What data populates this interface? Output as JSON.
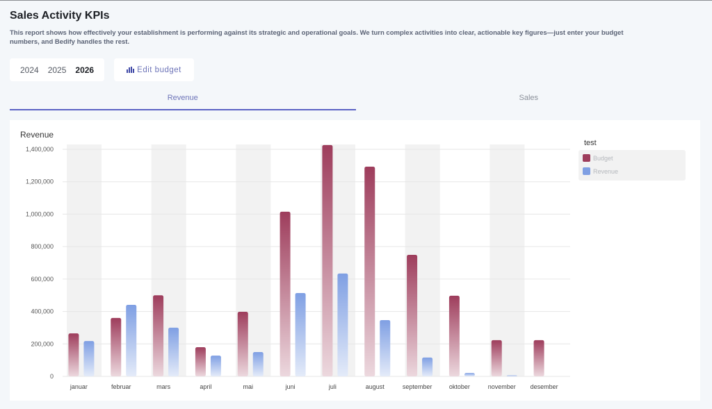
{
  "header": {
    "title": "Sales Activity KPIs",
    "description": "This report shows how effectively your establishment is performing against its strategic and operational goals. We turn complex activities into clear, actionable key figures—just enter your budget numbers, and Bedify handles the rest."
  },
  "years": [
    {
      "label": "2024",
      "active": false
    },
    {
      "label": "2025",
      "active": false
    },
    {
      "label": "2026",
      "active": true
    }
  ],
  "edit_budget": {
    "label": "Edit budget",
    "icon": "bar-chart-icon"
  },
  "tabs": [
    {
      "label": "Revenue",
      "active": true
    },
    {
      "label": "Sales",
      "active": false
    }
  ],
  "colors": {
    "budget": "#9e3d5c",
    "revenue": "#7f9fe3",
    "accent": "#5a62c4"
  },
  "legend": {
    "title": "test",
    "items": [
      "Budget",
      "Revenue"
    ]
  },
  "chart_data": {
    "type": "bar",
    "title": "Revenue",
    "xlabel": "",
    "ylabel": "",
    "ylim": [
      0,
      1400000
    ],
    "yticks": [
      0,
      200000,
      400000,
      600000,
      800000,
      1000000,
      1200000,
      1400000
    ],
    "ytick_labels": [
      "0",
      "200,000",
      "400,000",
      "600,000",
      "800,000",
      "1,000,000",
      "1,200,000",
      "1,400,000"
    ],
    "grid": true,
    "legend_position": "right",
    "categories": [
      "januar",
      "februar",
      "mars",
      "april",
      "mai",
      "juni",
      "juli",
      "august",
      "september",
      "oktober",
      "november",
      "desember"
    ],
    "series": [
      {
        "name": "Budget",
        "values": [
          265000,
          360000,
          500000,
          180000,
          398000,
          1015000,
          1426000,
          1293000,
          749000,
          497000,
          223000,
          223000
        ]
      },
      {
        "name": "Revenue",
        "values": [
          218000,
          441000,
          300000,
          128000,
          150000,
          514000,
          634000,
          347000,
          116000,
          21000,
          6000,
          0
        ]
      }
    ]
  }
}
